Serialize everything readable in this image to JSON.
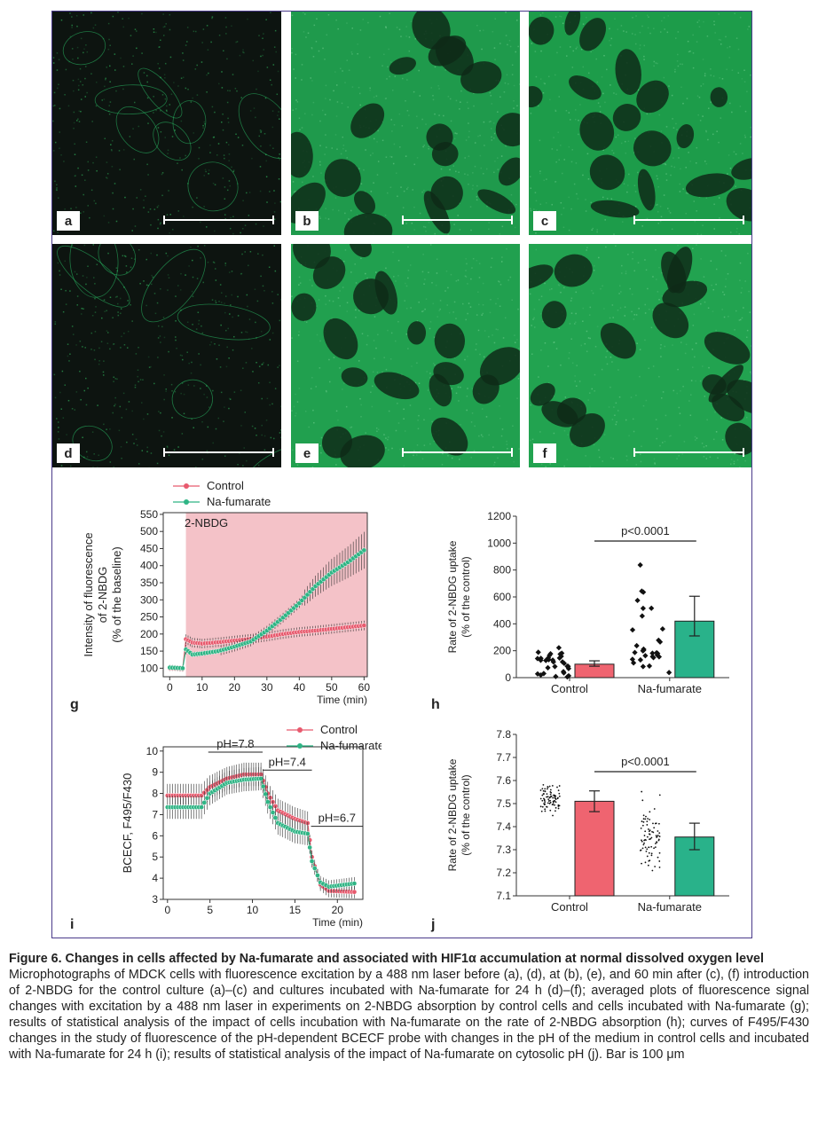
{
  "panels": [
    {
      "id": "a",
      "label": "a",
      "base": "#0d1410",
      "bright": 0.12
    },
    {
      "id": "b",
      "label": "b",
      "base": "#1f9a4c",
      "bright": 0.8
    },
    {
      "id": "c",
      "label": "c",
      "base": "#1d9c4a",
      "bright": 0.85
    },
    {
      "id": "d",
      "label": "d",
      "base": "#0d1410",
      "bright": 0.14
    },
    {
      "id": "e",
      "label": "e",
      "base": "#21a04f",
      "bright": 0.85
    },
    {
      "id": "f",
      "label": "f",
      "base": "#22a350",
      "bright": 0.9
    }
  ],
  "colors": {
    "control": "#e85a6e",
    "fumarate": "#2fb585",
    "bar_control": "#ef6470",
    "bar_fumarate": "#29b28a",
    "shade": "#f4c2c8",
    "frame": "#4a3a8a"
  },
  "chart_data": [
    {
      "id": "g",
      "type": "line",
      "label": "g",
      "title": "",
      "annotation": "2-NBDG",
      "xlabel": "Time (min)",
      "ylabel": [
        "Intensity of fluorescence",
        "of 2-NBDG",
        "(% of the baseline)"
      ],
      "xlim": [
        -2,
        61
      ],
      "ylim": [
        75,
        555
      ],
      "xticks": [
        0,
        10,
        20,
        30,
        40,
        50,
        60
      ],
      "yticks": [
        100,
        150,
        200,
        250,
        300,
        350,
        400,
        450,
        500,
        550
      ],
      "legend": [
        "Control",
        "Na-fumarate"
      ],
      "series": [
        {
          "name": "Control",
          "points": [
            [
              0,
              100
            ],
            [
              4,
              98
            ],
            [
              5,
              185
            ],
            [
              7,
              175
            ],
            [
              10,
              172
            ],
            [
              15,
              176
            ],
            [
              20,
              181
            ],
            [
              25,
              186
            ],
            [
              30,
              192
            ],
            [
              35,
              200
            ],
            [
              40,
              206
            ],
            [
              45,
              210
            ],
            [
              50,
              215
            ],
            [
              55,
              220
            ],
            [
              60,
              225
            ]
          ]
        },
        {
          "name": "Na-fumarate",
          "points": [
            [
              0,
              102
            ],
            [
              4,
              100
            ],
            [
              5,
              155
            ],
            [
              7,
              140
            ],
            [
              10,
              143
            ],
            [
              15,
              150
            ],
            [
              20,
              163
            ],
            [
              25,
              178
            ],
            [
              30,
              210
            ],
            [
              35,
              248
            ],
            [
              40,
              290
            ],
            [
              45,
              340
            ],
            [
              50,
              380
            ],
            [
              55,
              410
            ],
            [
              60,
              445
            ]
          ]
        }
      ]
    },
    {
      "id": "h",
      "type": "bar",
      "label": "h",
      "categories": [
        "Control",
        "Na-fumarate"
      ],
      "values": [
        100,
        420
      ],
      "errors": [
        [
          85,
          125
        ],
        [
          310,
          605
        ]
      ],
      "ylabel": [
        "Rate of 2-NBDG uptake",
        "(% of the control)"
      ],
      "ylim": [
        0,
        1200
      ],
      "yticks": [
        0,
        200,
        400,
        600,
        800,
        1000,
        1200
      ],
      "annotation": "p<0.0001"
    },
    {
      "id": "i",
      "type": "line",
      "label": "i",
      "xlabel": "Time (min)",
      "ylabel": "BCECF, F495/F430",
      "xlim": [
        -0.5,
        23
      ],
      "ylim": [
        3,
        10.2
      ],
      "xticks": [
        0,
        5,
        10,
        15,
        20
      ],
      "yticks": [
        3,
        4,
        5,
        6,
        7,
        8,
        9,
        10
      ],
      "legend": [
        "Control",
        "Na-fumarate"
      ],
      "annotations": [
        "pH=7.8",
        "pH=7.4",
        "pH=6.7"
      ],
      "series": [
        {
          "name": "Control",
          "points": [
            [
              0,
              7.9
            ],
            [
              4,
              7.9
            ],
            [
              5,
              8.3
            ],
            [
              7,
              8.7
            ],
            [
              9,
              8.9
            ],
            [
              11,
              8.9
            ],
            [
              11.8,
              8.0
            ],
            [
              13,
              7.2
            ],
            [
              15,
              6.8
            ],
            [
              16.5,
              6.6
            ],
            [
              17,
              5.0
            ],
            [
              18,
              3.7
            ],
            [
              19,
              3.4
            ],
            [
              22,
              3.35
            ]
          ]
        },
        {
          "name": "Na-fumarate",
          "points": [
            [
              0,
              7.35
            ],
            [
              4,
              7.35
            ],
            [
              5,
              8.0
            ],
            [
              7,
              8.5
            ],
            [
              9,
              8.65
            ],
            [
              11,
              8.7
            ],
            [
              11.8,
              7.6
            ],
            [
              13,
              6.6
            ],
            [
              15,
              6.2
            ],
            [
              16.5,
              6.1
            ],
            [
              17,
              4.8
            ],
            [
              18,
              3.8
            ],
            [
              19,
              3.6
            ],
            [
              22,
              3.75
            ]
          ]
        }
      ]
    },
    {
      "id": "j",
      "type": "bar",
      "label": "j",
      "categories": [
        "Control",
        "Na-fumarate"
      ],
      "values": [
        7.51,
        7.355
      ],
      "errors": [
        [
          7.465,
          7.555
        ],
        [
          7.3,
          7.415
        ]
      ],
      "ylabel": [
        "Rate of 2-NBDG uptake",
        "(% of the control)"
      ],
      "ylim": [
        7.1,
        7.8
      ],
      "yticks": [
        7.1,
        7.2,
        7.3,
        7.4,
        7.5,
        7.6,
        7.7,
        7.8
      ],
      "annotation": "p<0.0001"
    }
  ],
  "caption": {
    "title": "Figure 6. Changes in cells affected by Na-fumarate and associated with HIF1α accumulation at normal dissolved oxygen level",
    "body": "Microphotographs of MDCK cells with fluorescence excitation by a 488 nm laser before (a), (d), at (b), (e), and 60 min after (c), (f) introduction of 2-NBDG for the control culture (a)–(c) and cultures incubated with Na-fumarate for 24 h (d)–(f); averaged plots of fluorescence signal changes with excitation by a 488 nm laser in experiments on 2-NBDG absorption by control cells and cells incubated with Na-fumarate (g); results of statistical analysis of the impact of cells incubation with Na-fumarate on the rate of 2-NBDG absorption (h); curves of F495/F430 changes in the study of fluorescence of the pH-dependent BCECF probe with changes in the pH of the medium in control cells and incubated with Na-fumarate for 24 h (i); results of statistical analysis of the impact of Na-fumarate on cytosolic pH (j). Bar is 100 μm"
  }
}
